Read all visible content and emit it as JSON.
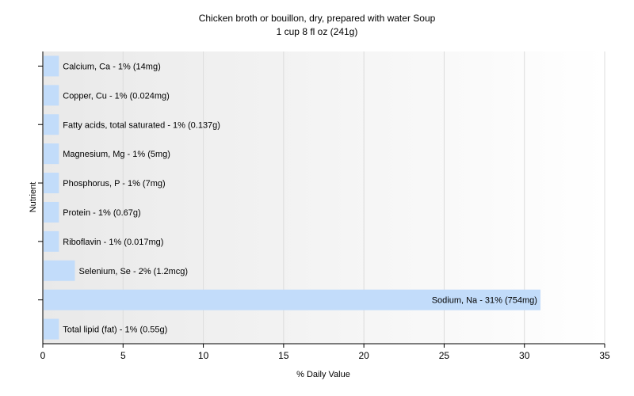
{
  "chart_data": {
    "type": "bar",
    "orientation": "horizontal",
    "title": "Chicken broth or bouillon, dry, prepared with water Soup",
    "subtitle": "1 cup 8 fl oz (241g)",
    "xlabel": "% Daily Value",
    "ylabel": "Nutrient",
    "xlim": [
      0,
      35
    ],
    "xticks": [
      0,
      5,
      10,
      15,
      20,
      25,
      30,
      35
    ],
    "grid": true,
    "bar_color": "#c2dcfa",
    "categories": [
      "Calcium, Ca",
      "Copper, Cu",
      "Fatty acids, total saturated",
      "Magnesium, Mg",
      "Phosphorus, P",
      "Protein",
      "Riboflavin",
      "Selenium, Se",
      "Sodium, Na",
      "Total lipid (fat)"
    ],
    "values": [
      1,
      1,
      1,
      1,
      1,
      1,
      1,
      2,
      31,
      1
    ],
    "labels": [
      "Calcium, Ca - 1% (14mg)",
      "Copper, Cu - 1% (0.024mg)",
      "Fatty acids, total saturated - 1% (0.137g)",
      "Magnesium, Mg - 1% (5mg)",
      "Phosphorus, P - 1% (7mg)",
      "Protein - 1% (0.67g)",
      "Riboflavin - 1% (0.017mg)",
      "Selenium, Se - 2% (1.2mcg)",
      "Sodium, Na - 31% (754mg)",
      "Total lipid (fat) - 1% (0.55g)"
    ]
  }
}
